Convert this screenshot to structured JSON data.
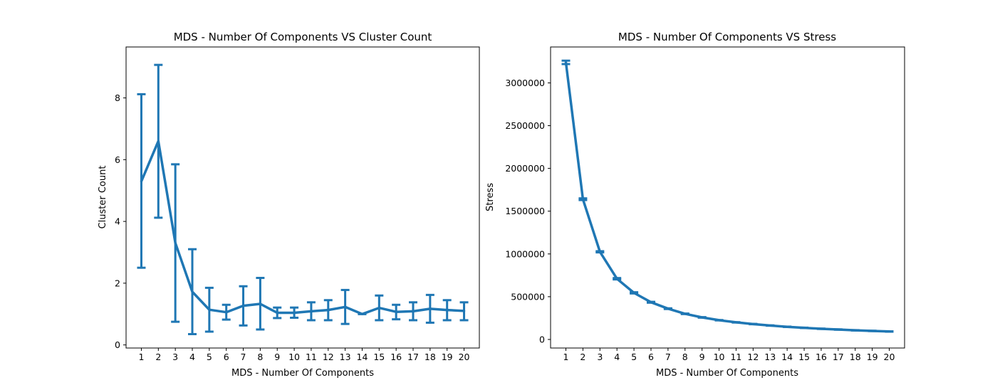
{
  "chart_data": [
    {
      "type": "line",
      "title": "MDS - Number Of Components VS Cluster Count",
      "xlabel": "MDS - Number Of Components",
      "ylabel": "Cluster Count",
      "x": [
        1,
        2,
        3,
        4,
        5,
        6,
        7,
        8,
        9,
        10,
        11,
        12,
        13,
        14,
        15,
        16,
        17,
        18,
        19,
        20
      ],
      "xticks": [
        "1",
        "2",
        "3",
        "4",
        "5",
        "6",
        "7",
        "8",
        "9",
        "10",
        "11",
        "12",
        "13",
        "14",
        "15",
        "16",
        "17",
        "18",
        "19",
        "20"
      ],
      "yticks": [
        0,
        2,
        4,
        6,
        8
      ],
      "ylim": [
        -0.1,
        9.65
      ],
      "xlim": [
        0.1,
        20.9
      ],
      "color": "#1f77b4",
      "series": [
        {
          "values": [
            5.3,
            6.6,
            3.3,
            1.72,
            1.14,
            1.06,
            1.27,
            1.33,
            1.04,
            1.04,
            1.09,
            1.13,
            1.23,
            1.0,
            1.2,
            1.07,
            1.09,
            1.17,
            1.13,
            1.1
          ],
          "err_low": [
            2.5,
            4.12,
            0.75,
            0.35,
            0.43,
            0.82,
            0.63,
            0.5,
            0.87,
            0.88,
            0.8,
            0.8,
            0.68,
            1.0,
            0.8,
            0.83,
            0.8,
            0.72,
            0.8,
            0.8
          ],
          "err_high": [
            8.12,
            9.07,
            5.85,
            3.1,
            1.85,
            1.3,
            1.9,
            2.17,
            1.21,
            1.21,
            1.38,
            1.45,
            1.78,
            1.0,
            1.6,
            1.3,
            1.38,
            1.62,
            1.45,
            1.38
          ]
        }
      ]
    },
    {
      "type": "line",
      "title": "MDS - Number Of Components VS Stress",
      "xlabel": "MDS - Number Of Components",
      "ylabel": "Stress",
      "x": [
        1,
        2,
        3,
        4,
        5,
        6,
        7,
        8,
        9,
        10,
        11,
        12,
        13,
        14,
        15,
        16,
        17,
        18,
        19,
        20
      ],
      "xticks": [
        "1",
        "2",
        "3",
        "4",
        "5",
        "6",
        "7",
        "8",
        "9",
        "10",
        "11",
        "12",
        "13",
        "14",
        "15",
        "16",
        "17",
        "18",
        "19",
        "20"
      ],
      "yticks": [
        0,
        500000,
        1000000,
        1500000,
        2000000,
        2500000,
        3000000
      ],
      "ylim": [
        -100000,
        3420000
      ],
      "xlim": [
        0.1,
        20.9
      ],
      "color": "#1f77b4",
      "series": [
        {
          "values": [
            3240000,
            1640000,
            1025000,
            710000,
            545000,
            435000,
            360000,
            300000,
            258000,
            225000,
            200000,
            180000,
            163000,
            148000,
            136000,
            125000,
            116000,
            107000,
            100000,
            93000
          ],
          "err_low": [
            3220000,
            1630000,
            1018000,
            702000,
            538000,
            430000,
            356000,
            297000,
            255000,
            223000,
            198000,
            178000,
            161000,
            146000,
            134000,
            123000,
            114000,
            105000,
            98000,
            91000
          ],
          "err_high": [
            3260000,
            1650000,
            1032000,
            718000,
            552000,
            440000,
            364000,
            303000,
            261000,
            227000,
            202000,
            182000,
            165000,
            150000,
            138000,
            127000,
            118000,
            109000,
            102000,
            95000
          ]
        }
      ]
    }
  ]
}
